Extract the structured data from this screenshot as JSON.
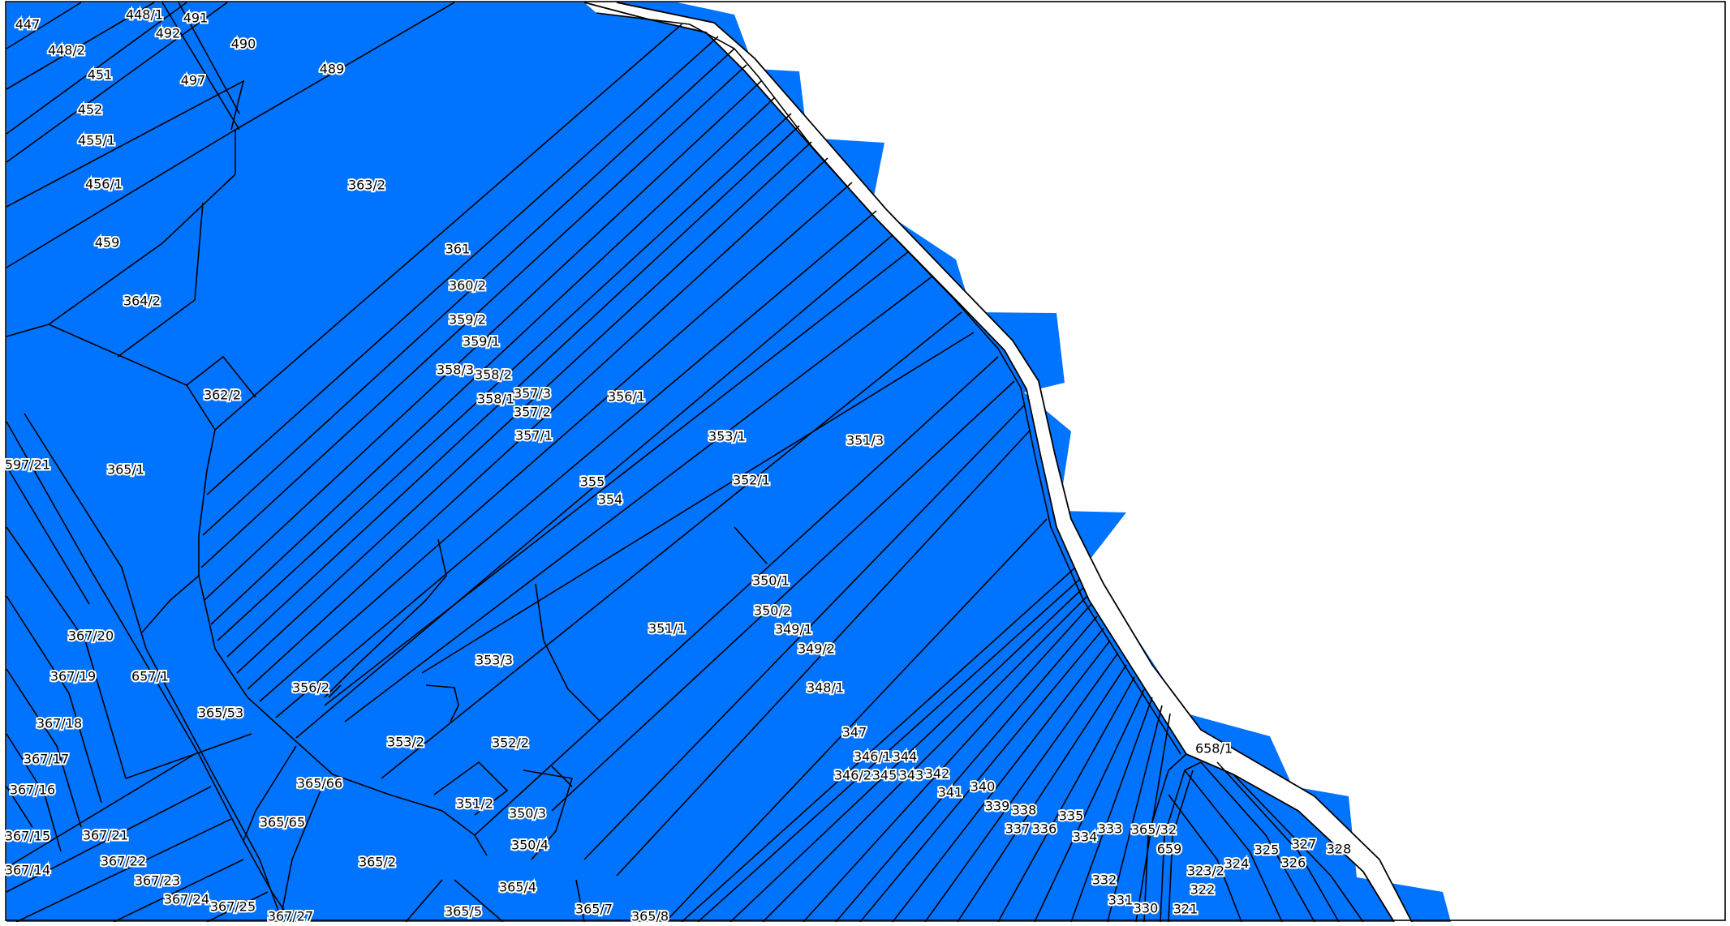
{
  "map": {
    "parcel_fill": "#0073FF",
    "line_color": "#000000",
    "background": "#FFFFFF",
    "labels": [
      "447",
      "448/1",
      "491",
      "492",
      "448/2",
      "490",
      "451",
      "489",
      "497",
      "452",
      "455/1",
      "456/1",
      "363/2",
      "459",
      "361",
      "360/2",
      "364/2",
      "359/2",
      "359/1",
      "358/3",
      "358/2",
      "362/2",
      "358/1",
      "357/3",
      "357/2",
      "356/1",
      "357/1",
      "353/1",
      "351/3",
      "597/21",
      "365/1",
      "355",
      "352/1",
      "354",
      "350/1",
      "350/2",
      "349/1",
      "351/1",
      "349/2",
      "367/20",
      "353/3",
      "367/19",
      "657/1",
      "356/2",
      "348/1",
      "365/53",
      "367/18",
      "353/2",
      "352/2",
      "347",
      "658/1",
      "367/17",
      "346/1",
      "344",
      "365/66",
      "346/2",
      "345",
      "343",
      "342",
      "367/16",
      "341",
      "340",
      "351/2",
      "339",
      "338",
      "365/65",
      "350/3",
      "335",
      "337",
      "336",
      "333",
      "365/32",
      "367/15",
      "367/21",
      "334",
      "350/4",
      "659",
      "367/22",
      "365/2",
      "325",
      "327",
      "328",
      "324",
      "326",
      "323/2",
      "367/14",
      "367/23",
      "365/4",
      "332",
      "322",
      "367/24",
      "331",
      "330",
      "321",
      "367/25",
      "365/7",
      "365/5",
      "365/8",
      "367/27"
    ]
  }
}
